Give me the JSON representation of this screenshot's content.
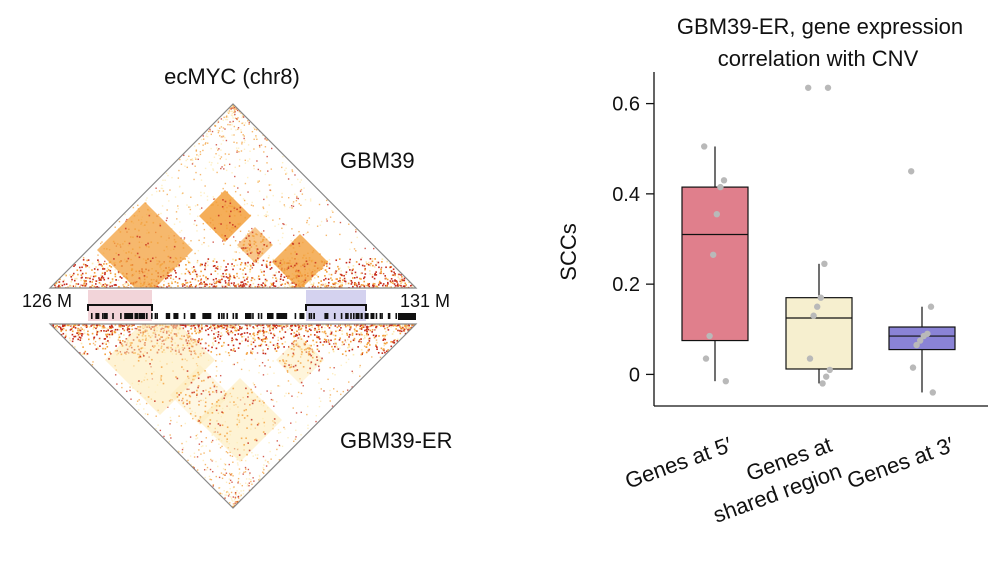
{
  "hic_panel": {
    "title": "ecMYC (chr8)",
    "top_sample": "GBM39",
    "bottom_sample": "GBM39-ER",
    "left_coord": "126 M",
    "right_coord": "131 M",
    "colors": {
      "high": "#c62a1a",
      "mid": "#f3a03c",
      "low": "#fde9b0",
      "region_5prime": "#f2d4d9",
      "region_3prime": "#d4d2ef",
      "outline": "#888888"
    }
  },
  "chart_data": {
    "type": "box",
    "title": "GBM39-ER, gene expression correlation with CNV",
    "title_lines": [
      "GBM39-ER, gene expression",
      "correlation with CNV"
    ],
    "xlabel": "",
    "ylabel": "SCCs",
    "ylim": [
      -0.07,
      0.67
    ],
    "yticks": [
      0,
      0.2,
      0.4,
      0.6
    ],
    "ytick_labels": [
      "0",
      "0.2",
      "0.4",
      "0.6"
    ],
    "categories": [
      "Genes at 5′",
      "Genes at shared region",
      "Genes at 3′"
    ],
    "category_label_lines": [
      [
        "Genes at 5′"
      ],
      [
        "Genes at",
        "shared region"
      ],
      [
        "Genes at 3′"
      ]
    ],
    "colors": [
      "#e07f8c",
      "#f6efcf",
      "#8a83d6"
    ],
    "boxes": [
      {
        "min": -0.015,
        "q1": 0.075,
        "median": 0.31,
        "q3": 0.415,
        "max": 0.505
      },
      {
        "min": -0.02,
        "q1": 0.012,
        "median": 0.125,
        "q3": 0.17,
        "max": 0.245
      },
      {
        "min": -0.04,
        "q1": 0.055,
        "median": 0.085,
        "q3": 0.105,
        "max": 0.15
      }
    ],
    "points": [
      [
        0.505,
        0.43,
        0.415,
        0.355,
        0.265,
        0.085,
        0.035,
        -0.015
      ],
      [
        0.635,
        0.635,
        0.245,
        0.17,
        0.15,
        0.13,
        0.035,
        0.01,
        -0.005,
        -0.02
      ],
      [
        0.45,
        0.15,
        0.09,
        0.085,
        0.075,
        0.065,
        0.015,
        -0.04
      ]
    ]
  }
}
